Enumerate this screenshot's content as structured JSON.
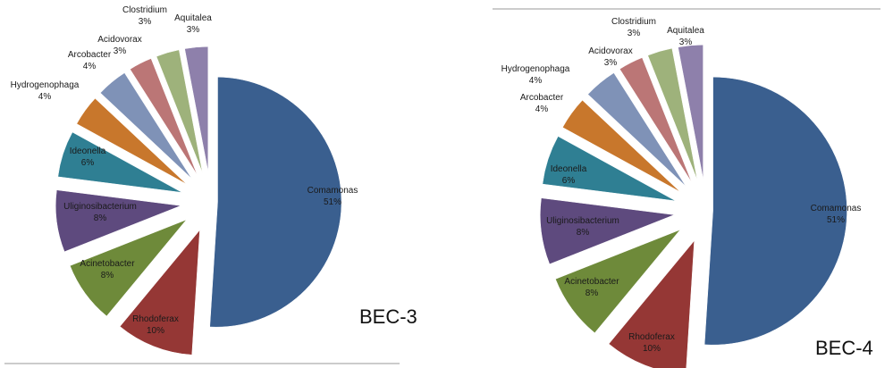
{
  "chart_data": [
    {
      "type": "pie",
      "panel_label": "BEC-3",
      "slices": [
        {
          "label": "Comamonas",
          "value": 51,
          "value_text": "51%",
          "color": "#3a5f8f"
        },
        {
          "label": "Rhodoferax",
          "value": 10,
          "value_text": "10%",
          "color": "#953735"
        },
        {
          "label": "Acinetobacter",
          "value": 8,
          "value_text": "8%",
          "color": "#6e8a3a"
        },
        {
          "label": "Uliginosibacterium",
          "value": 8,
          "value_text": "8%",
          "color": "#5e4a7e"
        },
        {
          "label": "Ideonella",
          "value": 6,
          "value_text": "6%",
          "color": "#2f7f93"
        },
        {
          "label": "Hydrogenophaga",
          "value": 4,
          "value_text": "4%",
          "color": "#c8772c"
        },
        {
          "label": "Arcobacter",
          "value": 4,
          "value_text": "4%",
          "color": "#7f92b7"
        },
        {
          "label": "Acidovorax",
          "value": 3,
          "value_text": "3%",
          "color": "#bb7676"
        },
        {
          "label": "Clostridium",
          "value": 3,
          "value_text": "3%",
          "color": "#9eb27b"
        },
        {
          "label": "Aquitalea",
          "value": 3,
          "value_text": "3%",
          "color": "#8e80ab"
        }
      ]
    },
    {
      "type": "pie",
      "panel_label": "BEC-4",
      "slices": [
        {
          "label": "Comamonas",
          "value": 51,
          "value_text": "51%",
          "color": "#3a5f8f"
        },
        {
          "label": "Rhodoferax",
          "value": 10,
          "value_text": "10%",
          "color": "#953735"
        },
        {
          "label": "Acinetobacter",
          "value": 8,
          "value_text": "8%",
          "color": "#6e8a3a"
        },
        {
          "label": "Uliginosibacterium",
          "value": 8,
          "value_text": "8%",
          "color": "#5e4a7e"
        },
        {
          "label": "Ideonella",
          "value": 6,
          "value_text": "6%",
          "color": "#2f7f93"
        },
        {
          "label": "Arcobacter",
          "value": 4,
          "value_text": "4%",
          "color": "#c8772c"
        },
        {
          "label": "Hydrogenophaga",
          "value": 4,
          "value_text": "4%",
          "color": "#7f92b7"
        },
        {
          "label": "Acidovorax",
          "value": 3,
          "value_text": "3%",
          "color": "#bb7676"
        },
        {
          "label": "Clostridium",
          "value": 3,
          "value_text": "3%",
          "color": "#9eb27b"
        },
        {
          "label": "Aquitalea",
          "value": 3,
          "value_text": "3%",
          "color": "#8e80ab"
        }
      ]
    }
  ]
}
